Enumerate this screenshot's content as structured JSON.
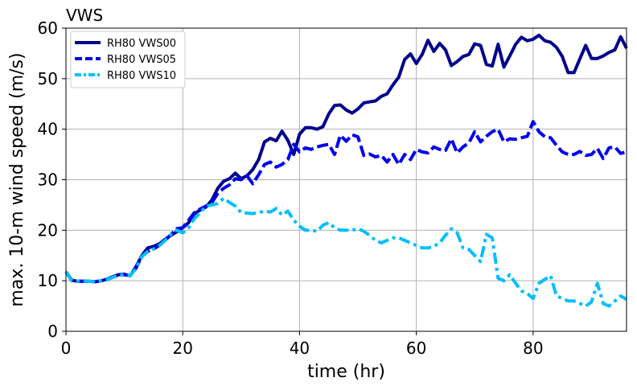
{
  "chart_data": {
    "type": "line",
    "title": "VWS",
    "xlabel": "time (hr)",
    "ylabel": "max. 10-m wind speed (m/s)",
    "xlim": [
      0,
      96
    ],
    "ylim": [
      0,
      60
    ],
    "xticks": [
      0,
      20,
      40,
      60,
      80
    ],
    "yticks": [
      0,
      10,
      20,
      30,
      40,
      50,
      60
    ],
    "grid": true,
    "legend_position": "top-left",
    "series": [
      {
        "name": "RH80 VWS00",
        "color": "#00008b",
        "style": "solid",
        "x": [
          0,
          1,
          2,
          3,
          4,
          5,
          6,
          7,
          8,
          9,
          10,
          11,
          12,
          13,
          14,
          15,
          16,
          17,
          18,
          19,
          20,
          21,
          22,
          23,
          24,
          25,
          26,
          27,
          28,
          29,
          30,
          31,
          32,
          33,
          34,
          35,
          36,
          37,
          38,
          39,
          40,
          41,
          42,
          43,
          44,
          45,
          46,
          47,
          48,
          49,
          50,
          51,
          52,
          53,
          54,
          55,
          56,
          57,
          58,
          59,
          60,
          61,
          62,
          63,
          64,
          65,
          66,
          67,
          68,
          69,
          70,
          71,
          72,
          73,
          74,
          75,
          76,
          77,
          78,
          79,
          80,
          81,
          82,
          83,
          84,
          85,
          86,
          87,
          88,
          89,
          90,
          91,
          92,
          93,
          94,
          95,
          96
        ],
        "y": [
          11.8,
          10.1,
          9.9,
          9.9,
          9.9,
          9.8,
          10.0,
          10.3,
          10.8,
          11.2,
          11.3,
          11.0,
          12.8,
          15.0,
          16.5,
          16.8,
          17.3,
          18.2,
          19.0,
          19.7,
          20.5,
          21.5,
          23.3,
          24.0,
          24.6,
          26.0,
          28.3,
          29.7,
          30.2,
          31.3,
          30.2,
          30.8,
          32.0,
          34.0,
          37.5,
          38.2,
          37.7,
          39.6,
          37.8,
          35.0,
          39.0,
          40.3,
          40.3,
          40.0,
          40.5,
          43.0,
          44.7,
          44.8,
          43.8,
          43.2,
          44.0,
          45.2,
          45.4,
          45.6,
          46.5,
          47.0,
          48.8,
          50.3,
          53.8,
          54.9,
          53.0,
          54.8,
          57.6,
          55.4,
          57.0,
          55.7,
          52.6,
          53.4,
          54.4,
          54.8,
          56.9,
          56.6,
          52.8,
          52.5,
          56.8,
          52.3,
          54.5,
          56.8,
          58.2,
          57.5,
          57.8,
          58.6,
          57.5,
          57.2,
          56.2,
          54.4,
          51.2,
          51.2,
          53.9,
          56.6,
          54.0,
          54.0,
          54.5,
          55.2,
          55.7,
          58.3,
          56.0
        ]
      },
      {
        "name": "RH80 VWS05",
        "color": "#0000ee",
        "style": "dashed",
        "x": [
          0,
          1,
          2,
          3,
          4,
          5,
          6,
          7,
          8,
          9,
          10,
          11,
          12,
          13,
          14,
          15,
          16,
          17,
          18,
          19,
          20,
          21,
          22,
          23,
          24,
          25,
          26,
          27,
          28,
          29,
          30,
          31,
          32,
          33,
          34,
          35,
          36,
          37,
          38,
          39,
          40,
          41,
          42,
          43,
          44,
          45,
          46,
          47,
          48,
          49,
          50,
          51,
          52,
          53,
          54,
          55,
          56,
          57,
          58,
          59,
          60,
          61,
          62,
          63,
          64,
          65,
          66,
          67,
          68,
          69,
          70,
          71,
          72,
          73,
          74,
          75,
          76,
          77,
          78,
          79,
          80,
          81,
          82,
          83,
          84,
          85,
          86,
          87,
          88,
          89,
          90,
          91,
          92,
          93,
          94,
          95,
          96
        ],
        "y": [
          11.8,
          10.0,
          9.9,
          9.9,
          9.9,
          9.8,
          10.0,
          10.2,
          10.7,
          11.1,
          11.2,
          11.0,
          12.5,
          14.8,
          15.8,
          16.3,
          17.0,
          18.0,
          19.2,
          20.3,
          20.5,
          22.0,
          23.5,
          24.2,
          24.8,
          25.5,
          27.3,
          28.3,
          29.0,
          30.2,
          30.0,
          30.8,
          29.2,
          31.0,
          33.0,
          33.5,
          32.5,
          33.0,
          34.0,
          37.0,
          35.5,
          36.3,
          36.0,
          36.5,
          36.8,
          37.0,
          35.0,
          38.8,
          37.6,
          38.9,
          38.5,
          34.8,
          35.1,
          34.5,
          34.8,
          33.5,
          35.0,
          33.0,
          35.0,
          34.0,
          36.0,
          35.5,
          35.3,
          36.5,
          36.0,
          35.8,
          38.1,
          35.3,
          36.5,
          37.3,
          39.5,
          37.5,
          38.6,
          39.5,
          40.0,
          37.5,
          38.1,
          38.0,
          38.3,
          38.6,
          41.5,
          39.5,
          38.5,
          38.3,
          36.8,
          35.5,
          35.0,
          35.0,
          35.6,
          34.8,
          35.0,
          36.2,
          34.2,
          36.3,
          36.5,
          35.2,
          35.5
        ]
      },
      {
        "name": "RH80 VWS10",
        "color": "#00bfff",
        "style": "dashdot",
        "x": [
          0,
          1,
          2,
          3,
          4,
          5,
          6,
          7,
          8,
          9,
          10,
          11,
          12,
          13,
          14,
          15,
          16,
          17,
          18,
          19,
          20,
          21,
          22,
          23,
          24,
          25,
          26,
          27,
          28,
          29,
          30,
          31,
          32,
          33,
          34,
          35,
          36,
          37,
          38,
          39,
          40,
          41,
          42,
          43,
          44,
          45,
          46,
          47,
          48,
          49,
          50,
          51,
          52,
          53,
          54,
          55,
          56,
          57,
          58,
          59,
          60,
          61,
          62,
          63,
          64,
          65,
          66,
          67,
          68,
          69,
          70,
          71,
          72,
          73,
          74,
          75,
          76,
          77,
          78,
          79,
          80,
          81,
          82,
          83,
          84,
          85,
          86,
          87,
          88,
          89,
          90,
          91,
          92,
          93,
          94,
          95,
          96
        ],
        "y": [
          11.8,
          10.0,
          9.9,
          9.9,
          9.9,
          9.8,
          10.0,
          10.2,
          10.7,
          11.1,
          11.2,
          11.0,
          12.5,
          14.8,
          15.8,
          16.3,
          17.0,
          18.0,
          19.2,
          20.0,
          19.5,
          20.5,
          22.3,
          23.5,
          24.8,
          25.0,
          25.3,
          26.3,
          25.5,
          24.8,
          23.5,
          23.4,
          23.3,
          23.5,
          23.8,
          23.6,
          24.3,
          23.0,
          23.8,
          22.0,
          20.8,
          20.0,
          20.0,
          19.8,
          21.0,
          21.5,
          20.5,
          20.0,
          20.0,
          20.0,
          20.3,
          19.8,
          19.0,
          18.0,
          17.5,
          18.0,
          18.5,
          18.5,
          18.0,
          17.5,
          17.0,
          16.5,
          16.5,
          16.8,
          17.5,
          19.0,
          20.3,
          19.5,
          16.5,
          16.2,
          15.0,
          13.8,
          19.2,
          18.5,
          10.5,
          10.0,
          11.2,
          9.5,
          8.0,
          7.5,
          6.5,
          9.5,
          10.3,
          11.0,
          7.0,
          6.5,
          6.0,
          6.0,
          5.5,
          5.0,
          5.8,
          9.5,
          5.5,
          5.0,
          6.0,
          7.0,
          6.3
        ]
      }
    ]
  }
}
